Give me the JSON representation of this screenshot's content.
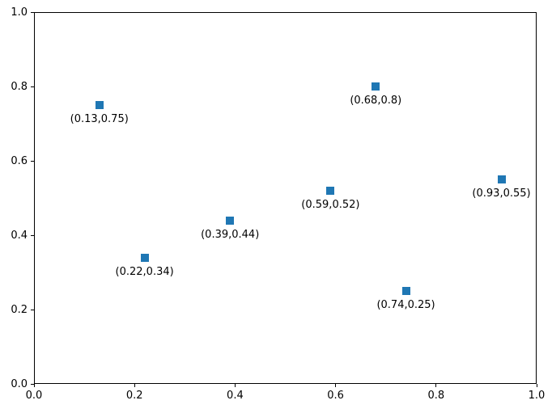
{
  "chart_data": {
    "type": "scatter",
    "title": "",
    "xlabel": "",
    "ylabel": "",
    "xlim": [
      0.0,
      1.0
    ],
    "ylim": [
      0.0,
      1.0
    ],
    "grid": false,
    "legend": false,
    "marker": "square",
    "marker_color": "#1f77b4",
    "frame_color": "#000000",
    "points": [
      {
        "x": 0.13,
        "y": 0.75,
        "label": "(0.13,0.75)"
      },
      {
        "x": 0.22,
        "y": 0.34,
        "label": "(0.22,0.34)"
      },
      {
        "x": 0.39,
        "y": 0.44,
        "label": "(0.39,0.44)"
      },
      {
        "x": 0.59,
        "y": 0.52,
        "label": "(0.59,0.52)"
      },
      {
        "x": 0.68,
        "y": 0.8,
        "label": "(0.68,0.8)"
      },
      {
        "x": 0.74,
        "y": 0.25,
        "label": "(0.74,0.25)"
      },
      {
        "x": 0.93,
        "y": 0.55,
        "label": "(0.93,0.55)"
      }
    ],
    "x_ticks": [
      {
        "value": 0.0,
        "label": "0.0"
      },
      {
        "value": 0.2,
        "label": "0.2"
      },
      {
        "value": 0.4,
        "label": "0.4"
      },
      {
        "value": 0.6,
        "label": "0.6"
      },
      {
        "value": 0.8,
        "label": "0.8"
      },
      {
        "value": 1.0,
        "label": "1.0"
      }
    ],
    "y_ticks": [
      {
        "value": 0.0,
        "label": "0.0"
      },
      {
        "value": 0.2,
        "label": "0.2"
      },
      {
        "value": 0.4,
        "label": "0.4"
      },
      {
        "value": 0.6,
        "label": "0.6"
      },
      {
        "value": 0.8,
        "label": "0.8"
      },
      {
        "value": 1.0,
        "label": "1.0"
      }
    ]
  }
}
